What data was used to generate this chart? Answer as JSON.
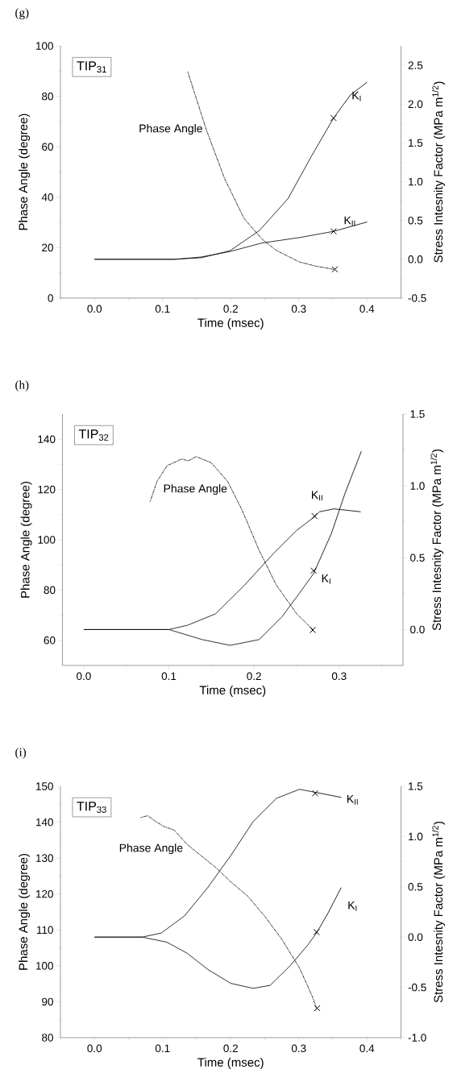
{
  "chart_data": [
    {
      "type": "line",
      "title": "(g)",
      "xlabel": "Time (msec)",
      "ylabel": "Phase Angle (degree)",
      "y2label": "Stress Intesnity Factor (MPa m$^{1/2}$)",
      "xlim": [
        -0.05,
        0.45
      ],
      "xticks": [
        {
          "value": -0.05,
          "label": null
        },
        {
          "value": 0,
          "label": "0.0"
        },
        {
          "value": 0.05,
          "label": null
        },
        {
          "value": 0.1,
          "label": "0.1"
        },
        {
          "value": 0.15,
          "label": null
        },
        {
          "value": 0.2,
          "label": "0.2"
        },
        {
          "value": 0.25,
          "label": null
        },
        {
          "value": 0.3,
          "label": "0.3"
        },
        {
          "value": 0.35,
          "label": null
        },
        {
          "value": 0.4,
          "label": "0.4"
        },
        {
          "value": 0.45,
          "label": null
        }
      ],
      "ylim": [
        0,
        100
      ],
      "yticks": [
        0,
        {
          "value": 10,
          "label": null
        },
        20,
        {
          "value": 30,
          "label": null
        },
        40,
        {
          "value": 50,
          "label": null
        },
        60,
        {
          "value": 70,
          "label": null
        },
        80,
        {
          "value": 90,
          "label": null
        },
        100
      ],
      "y2lim": [
        -0.5,
        2.75
      ],
      "y2ticks": [
        -0.5,
        {
          "value": -0.25,
          "label": null
        },
        {
          "value": 0,
          "label": "0.0"
        },
        {
          "value": 0.25,
          "label": null
        },
        0.5,
        {
          "value": 0.75,
          "label": null
        },
        {
          "value": 1,
          "label": "1.0"
        },
        {
          "value": 1.25,
          "label": null
        },
        1.5,
        {
          "value": 1.75,
          "label": null
        },
        {
          "value": 2,
          "label": "2.0"
        },
        {
          "value": 2.25,
          "label": null
        },
        2.5
      ],
      "series": [
        {
          "axis": "y",
          "line_style": "dashdot",
          "marker": "none",
          "color": "#000000",
          "x": [
            0.137,
            0.164,
            0.191,
            0.22,
            0.246,
            0.267,
            0.301,
            0.326,
            0.351
          ],
          "values": [
            89.7,
            66.9,
            47.4,
            31.4,
            23.4,
            18.9,
            14.3,
            12.6,
            11.4
          ]
        },
        {
          "axis": "y2",
          "line_style": "solid",
          "marker": "none",
          "color": "#000000",
          "x": [
            0,
            0.115,
            0.157,
            0.199,
            0.242,
            0.284,
            0.318,
            0.351
          ],
          "values": [
            0,
            0,
            0.02,
            0.11,
            0.37,
            0.78,
            1.32,
            1.82
          ]
        },
        {
          "axis": "y2",
          "line_style": "dotted",
          "marker": "none",
          "color": "#000000",
          "x": [
            0.351,
            0.376,
            0.4
          ],
          "values": [
            1.82,
            2.12,
            2.28
          ]
        },
        {
          "axis": "y2",
          "line_style": "solid",
          "marker": "none",
          "color": "#000000",
          "x": [
            0,
            0.12,
            0.157,
            0.199,
            0.246,
            0.301,
            0.351
          ],
          "values": [
            0,
            0,
            0.03,
            0.1,
            0.21,
            0.28,
            0.36
          ]
        },
        {
          "axis": "y2",
          "line_style": "dotted",
          "marker": "none",
          "color": "#000000",
          "x": [
            0.351,
            0.4
          ],
          "values": [
            0.36,
            0.48
          ]
        },
        {
          "type": "scatter",
          "axis": "y",
          "marker": "cross",
          "color": "#000000",
          "x": [
            0.353
          ],
          "values": [
            11.4
          ]
        },
        {
          "type": "scatter",
          "axis": "y2",
          "marker": "cross",
          "color": "#000000",
          "x": [
            0.351,
            0.351
          ],
          "values": [
            1.82,
            0.36
          ]
        }
      ],
      "annotations": [
        "TIP$_{31}$",
        "Phase Angle",
        "K$_{I}$",
        "K$_{II}$"
      ]
    },
    {
      "type": "line",
      "title": "(h)",
      "xlabel": "Time (msec)",
      "ylabel": "Phase Angle (degree)",
      "y2label": "Stress Intesnity Factor (MPa m$^{1/2}$)",
      "xlim": [
        -0.025,
        0.375
      ],
      "xticks": [
        {
          "value": 0,
          "label": "0.0"
        },
        {
          "value": 0.05,
          "label": null
        },
        {
          "value": 0.1,
          "label": "0.1"
        },
        {
          "value": 0.15,
          "label": null
        },
        {
          "value": 0.2,
          "label": "0.2"
        },
        {
          "value": 0.25,
          "label": null
        },
        {
          "value": 0.3,
          "label": "0.3"
        },
        {
          "value": 0.35,
          "label": null
        }
      ],
      "ylim": [
        50,
        150
      ],
      "yticks": [
        60,
        {
          "value": 70,
          "label": null
        },
        80,
        {
          "value": 90,
          "label": null
        },
        100,
        {
          "value": 110,
          "label": null
        },
        120,
        {
          "value": 130,
          "label": null
        },
        140
      ],
      "y2lim": [
        -0.25,
        1.5
      ],
      "y2ticks": [
        {
          "value": 0,
          "label": "0.0"
        },
        {
          "value": 0.25,
          "label": null
        },
        0.5,
        {
          "value": 0.75,
          "label": null
        },
        {
          "value": 1,
          "label": "1.0"
        },
        {
          "value": 1.25,
          "label": null
        },
        1.5
      ],
      "series": [
        {
          "axis": "y",
          "line_style": "dashdot",
          "marker": "none",
          "color": "#000000",
          "x": [
            0.078,
            0.086,
            0.098,
            0.115,
            0.123,
            0.132,
            0.15,
            0.169,
            0.186,
            0.206,
            0.226,
            0.25,
            0.269
          ],
          "values": [
            115.2,
            123.2,
            129.5,
            132.1,
            131.4,
            133.1,
            130.6,
            123.2,
            111.8,
            95.8,
            82.1,
            70.6,
            64.3
          ]
        },
        {
          "axis": "y2",
          "line_style": "solid",
          "marker": "none",
          "color": "#000000",
          "x": [
            0,
            0.1,
            0.139,
            0.172,
            0.206,
            0.233,
            0.253,
            0.27
          ],
          "values": [
            0,
            0,
            -0.07,
            -0.11,
            -0.07,
            0.09,
            0.25,
            0.39
          ]
        },
        {
          "axis": "y2",
          "line_style": "dotted",
          "marker": "none",
          "color": "#000000",
          "x": [
            0.27,
            0.291,
            0.307,
            0.326
          ],
          "values": [
            0.39,
            0.67,
            0.95,
            1.24
          ]
        },
        {
          "axis": "y2",
          "line_style": "solid",
          "marker": "none",
          "color": "#000000",
          "x": [
            0,
            0.1,
            0.122,
            0.155,
            0.189,
            0.223,
            0.25,
            0.27
          ],
          "values": [
            0,
            0,
            0.03,
            0.11,
            0.31,
            0.53,
            0.69,
            0.78
          ]
        },
        {
          "axis": "y2",
          "line_style": "dotted",
          "marker": "none",
          "color": "#000000",
          "x": [
            0.27,
            0.277,
            0.294,
            0.325
          ],
          "values": [
            0.78,
            0.82,
            0.84,
            0.82
          ]
        },
        {
          "type": "scatter",
          "axis": "y",
          "marker": "cross",
          "color": "#000000",
          "x": [
            0.269
          ],
          "values": [
            64.1
          ]
        },
        {
          "type": "scatter",
          "axis": "y2",
          "marker": "cross",
          "color": "#000000",
          "x": [
            0.271,
            0.27
          ],
          "values": [
            0.79,
            0.41
          ]
        }
      ],
      "annotations": [
        "TIP$_{32}$",
        "Phase Angle",
        "K$_{II}$",
        "K$_{I}$"
      ]
    },
    {
      "type": "line",
      "title": "(i)",
      "xlabel": "Time (msec)",
      "ylabel": "Phase Angle (degree)",
      "y2label": "Stress Intesnity Factor (MPa m$^{1/2}$)",
      "xlim": [
        -0.05,
        0.45
      ],
      "xticks": [
        {
          "value": -0.05,
          "label": null
        },
        {
          "value": 0,
          "label": "0.0"
        },
        {
          "value": 0.05,
          "label": null
        },
        {
          "value": 0.1,
          "label": "0.1"
        },
        {
          "value": 0.15,
          "label": null
        },
        {
          "value": 0.2,
          "label": "0.2"
        },
        {
          "value": 0.25,
          "label": null
        },
        {
          "value": 0.3,
          "label": "0.3"
        },
        {
          "value": 0.35,
          "label": null
        },
        {
          "value": 0.4,
          "label": "0.4"
        },
        {
          "value": 0.45,
          "label": null
        }
      ],
      "ylim": [
        80,
        150
      ],
      "yticks": [
        80,
        {
          "value": 85,
          "label": null
        },
        90,
        {
          "value": 95,
          "label": null
        },
        100,
        {
          "value": 105,
          "label": null
        },
        110,
        {
          "value": 115,
          "label": null
        },
        120,
        {
          "value": 125,
          "label": null
        },
        130,
        {
          "value": 135,
          "label": null
        },
        140,
        {
          "value": 145,
          "label": null
        },
        150
      ],
      "y2lim": [
        -1,
        1.5
      ],
      "y2ticks": [
        {
          "value": -1,
          "label": "-1.0"
        },
        {
          "value": -0.75,
          "label": null
        },
        -0.5,
        {
          "value": -0.25,
          "label": null
        },
        {
          "value": 0,
          "label": "0.0"
        },
        {
          "value": 0.25,
          "label": null
        },
        0.5,
        {
          "value": 0.75,
          "label": null
        },
        {
          "value": 1,
          "label": "1.0"
        },
        {
          "value": 1.25,
          "label": null
        },
        1.5
      ],
      "series": [
        {
          "axis": "y",
          "line_style": "dashdot",
          "marker": "none",
          "color": "#000000",
          "x": [
            0.068,
            0.078,
            0.09,
            0.102,
            0.117,
            0.136,
            0.157,
            0.178,
            0.2,
            0.225,
            0.25,
            0.275,
            0.301,
            0.32,
            0.326
          ],
          "values": [
            141.3,
            141.8,
            140.2,
            138.8,
            137.8,
            133.8,
            130.6,
            127.4,
            123.4,
            119.4,
            113.8,
            107.4,
            99.4,
            91.4,
            88.2
          ]
        },
        {
          "axis": "y2",
          "line_style": "solid",
          "marker": "none",
          "color": "#000000",
          "x": [
            0,
            0.07,
            0.106,
            0.136,
            0.166,
            0.2,
            0.233,
            0.258,
            0.288,
            0.313,
            0.326
          ],
          "values": [
            0,
            0,
            -0.05,
            -0.16,
            -0.32,
            -0.46,
            -0.51,
            -0.48,
            -0.28,
            -0.08,
            0.04
          ]
        },
        {
          "axis": "y2",
          "line_style": "dotted",
          "marker": "none",
          "color": "#000000",
          "x": [
            0.326,
            0.343,
            0.362
          ],
          "values": [
            0.04,
            0.24,
            0.49
          ]
        },
        {
          "axis": "y2",
          "line_style": "solid",
          "marker": "none",
          "color": "#000000",
          "x": [
            0,
            0.07,
            0.098,
            0.132,
            0.166,
            0.2,
            0.233,
            0.267,
            0.301,
            0.324
          ],
          "values": [
            0,
            0,
            0.04,
            0.21,
            0.49,
            0.81,
            1.15,
            1.38,
            1.47,
            1.44
          ]
        },
        {
          "axis": "y2",
          "line_style": "dotted",
          "marker": "none",
          "color": "#000000",
          "x": [
            0.324,
            0.362
          ],
          "values": [
            1.44,
            1.39
          ]
        },
        {
          "type": "scatter",
          "axis": "y",
          "marker": "cross",
          "color": "#000000",
          "x": [
            0.327
          ],
          "values": [
            88.2
          ]
        },
        {
          "type": "scatter",
          "axis": "y2",
          "marker": "cross",
          "color": "#000000",
          "x": [
            0.324,
            0.326
          ],
          "values": [
            1.43,
            0.05
          ]
        }
      ],
      "annotations": [
        "TIP$_{33}$",
        "Phase Angle",
        "K$_{II}$",
        "K$_{I}$"
      ]
    }
  ]
}
